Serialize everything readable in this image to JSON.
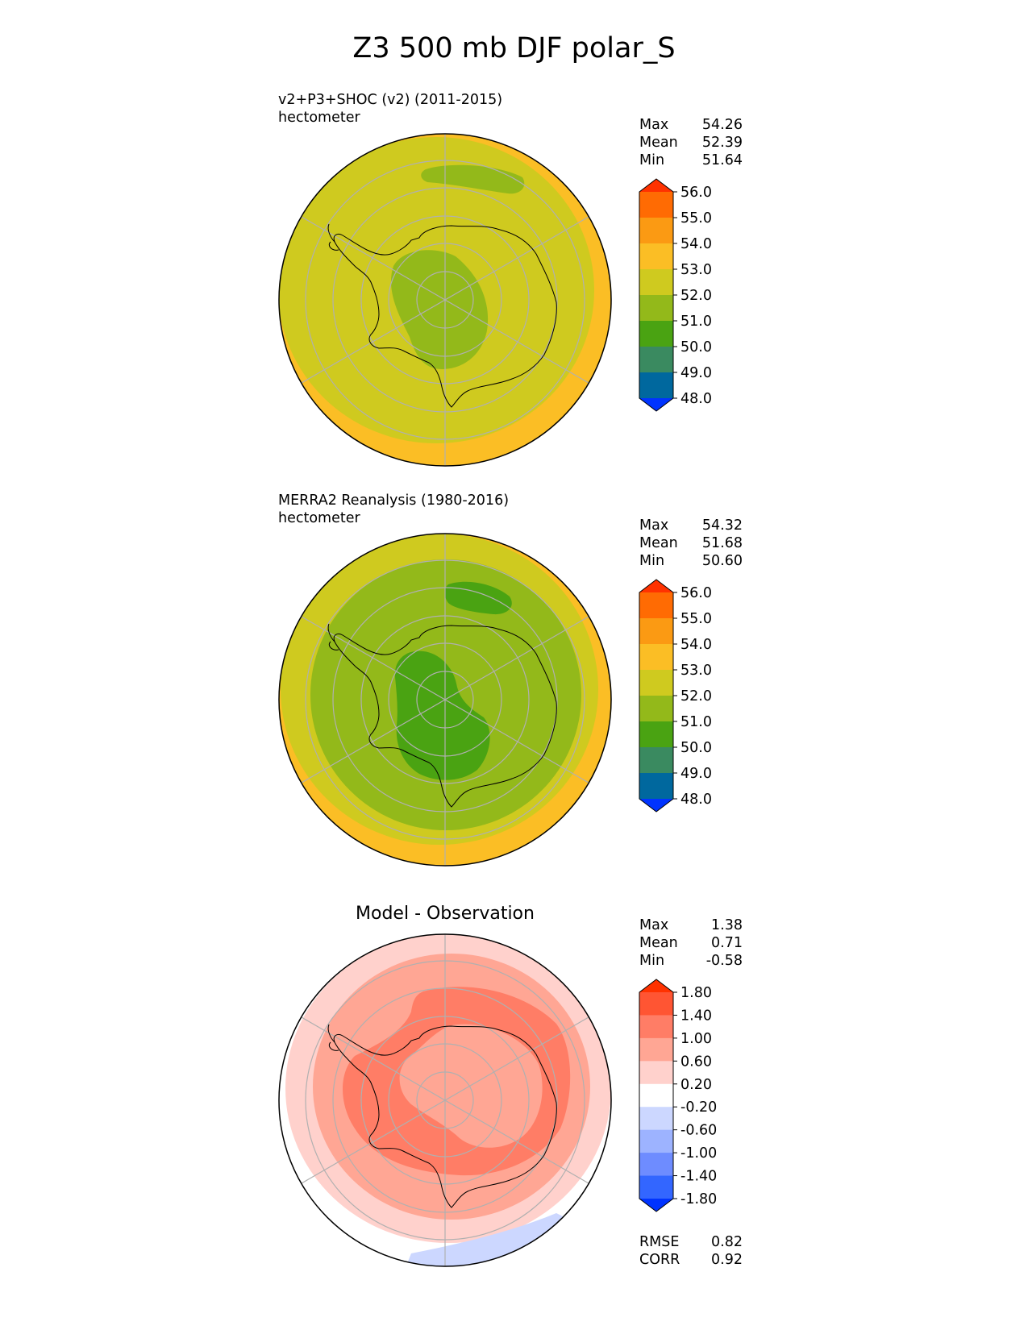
{
  "title": "Z3 500 mb DJF polar_S",
  "colors": {
    "abs_levels": [
      "#0033ff",
      "#00689e",
      "#3a8a60",
      "#4aa312",
      "#93b91a",
      "#cfca1f",
      "#fbbe25",
      "#fb9a13",
      "#ff6b03",
      "#ff3200"
    ],
    "diff_levels": [
      "#0033ff",
      "#3366ff",
      "#6e8cff",
      "#9db3ff",
      "#ccd7ff",
      "#ffffff",
      "#ffd1cc",
      "#ffa694",
      "#ff7d66",
      "#ff5533",
      "#ff3200"
    ],
    "grid": "#b0b0b0",
    "coast": "#000000"
  },
  "chart_data": [
    {
      "type": "heatmap",
      "projection": "south polar stereographic",
      "title": "v2+P3+SHOC (v2) (2011-2015)",
      "units": "hectometer",
      "stats": {
        "max": "54.26",
        "mean": "52.39",
        "min": "51.64"
      },
      "colorbar": {
        "ticks": [
          "48.0",
          "49.0",
          "50.0",
          "51.0",
          "52.0",
          "53.0",
          "54.0",
          "55.0",
          "56.0"
        ],
        "extend": "both"
      },
      "stat_labels": {
        "max": "Max",
        "mean": "Mean",
        "min": "Min"
      }
    },
    {
      "type": "heatmap",
      "projection": "south polar stereographic",
      "title": "MERRA2 Reanalysis (1980-2016)",
      "units": "hectometer",
      "stats": {
        "max": "54.32",
        "mean": "51.68",
        "min": "50.60"
      },
      "colorbar": {
        "ticks": [
          "48.0",
          "49.0",
          "50.0",
          "51.0",
          "52.0",
          "53.0",
          "54.0",
          "55.0",
          "56.0"
        ],
        "extend": "both"
      },
      "stat_labels": {
        "max": "Max",
        "mean": "Mean",
        "min": "Min"
      }
    },
    {
      "type": "heatmap",
      "projection": "south polar stereographic",
      "title": "Model - Observation",
      "stats": {
        "max": "1.38",
        "mean": "0.71",
        "min": "-0.58"
      },
      "colorbar": {
        "ticks": [
          "-1.80",
          "-1.40",
          "-1.00",
          "-0.60",
          "-0.20",
          "0.20",
          "0.60",
          "1.00",
          "1.40",
          "1.80"
        ],
        "extend": "both"
      },
      "stat_labels": {
        "max": "Max",
        "mean": "Mean",
        "min": "Min"
      },
      "metrics": {
        "rmse_label": "RMSE",
        "rmse": "0.82",
        "corr_label": "CORR",
        "corr": "0.92"
      }
    }
  ]
}
